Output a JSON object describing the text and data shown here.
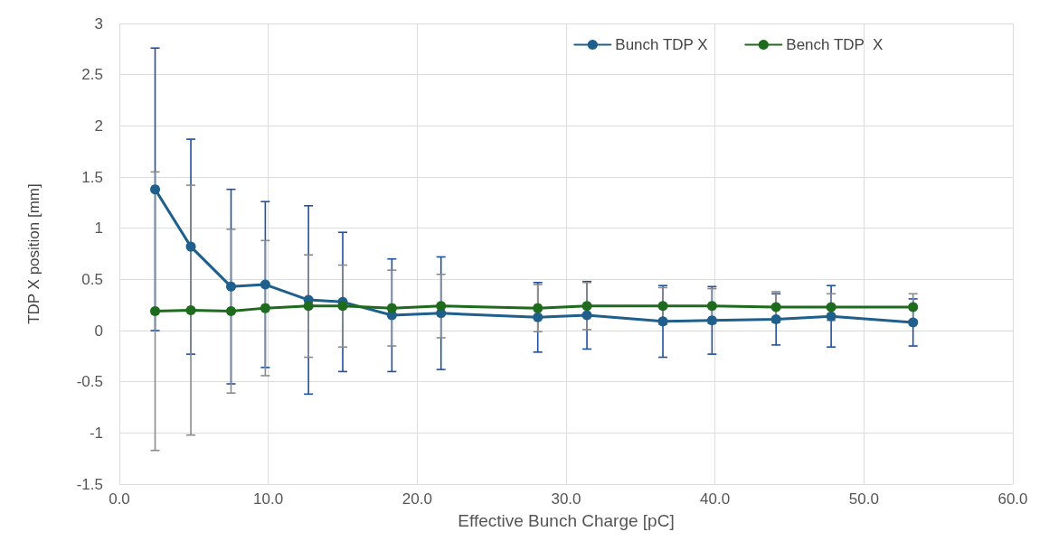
{
  "chart_data": {
    "type": "line",
    "xlabel": "Effective Bunch Charge [pC]",
    "ylabel": "TDP X position [mm]",
    "x": [
      2.4,
      4.8,
      7.5,
      9.8,
      12.7,
      15.0,
      18.3,
      21.6,
      28.1,
      31.4,
      36.5,
      39.8,
      44.1,
      47.8,
      53.3
    ],
    "series": [
      {
        "name": "Bunch TDP X",
        "color": "#1f5f8b",
        "values": [
          1.38,
          0.82,
          0.43,
          0.45,
          0.3,
          0.28,
          0.15,
          0.17,
          0.13,
          0.15,
          0.09,
          0.1,
          0.11,
          0.14,
          0.08
        ],
        "errors": [
          1.38,
          1.05,
          0.95,
          0.81,
          0.92,
          0.68,
          0.55,
          0.55,
          0.34,
          0.33,
          0.35,
          0.33,
          0.25,
          0.3,
          0.23
        ]
      },
      {
        "name": "Bench TDP  X",
        "color": "#1e6b1e",
        "values": [
          0.19,
          0.2,
          0.19,
          0.22,
          0.24,
          0.24,
          0.22,
          0.24,
          0.22,
          0.24,
          0.24,
          0.24,
          0.23,
          0.23,
          0.23
        ],
        "errors": [
          1.36,
          1.22,
          0.8,
          0.66,
          0.5,
          0.4,
          0.37,
          0.31,
          0.23,
          0.23,
          0.18,
          0.17,
          0.15,
          0.13,
          0.13
        ]
      }
    ],
    "xlim": [
      0,
      60
    ],
    "xticks": [
      {
        "value": 0,
        "label": "0.0"
      },
      {
        "value": 10,
        "label": "10.0"
      },
      {
        "value": 20,
        "label": "20.0"
      },
      {
        "value": 30,
        "label": "30.0"
      },
      {
        "value": 40,
        "label": "40.0"
      },
      {
        "value": 50,
        "label": "50.0"
      },
      {
        "value": 60,
        "label": "60.0"
      }
    ],
    "ylim": [
      -1.5,
      3
    ],
    "yticks": [
      -1.5,
      -1,
      -0.5,
      0,
      0.5,
      1,
      1.5,
      2,
      2.5,
      3
    ],
    "grid": true,
    "legend": "top right",
    "marker": "circle",
    "line_style": "solid"
  }
}
